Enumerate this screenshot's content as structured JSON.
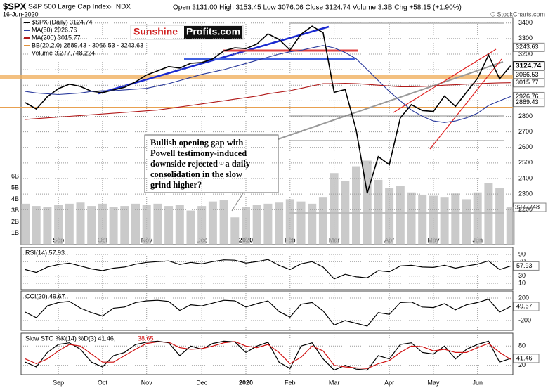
{
  "header": {
    "symbol": "$SPX",
    "name": "S&P 500 Large Cap Index· INDX",
    "date": "16-Jun-2020",
    "quote": "Open 3131.00 High 3153.45 Low 3076.06 Close 3124.74 Volume 3.3B Chg +58.15 (+1.90%)",
    "copyright": "© StockCharts.com"
  },
  "logo": {
    "left": "Sunshine",
    "right": "Profits.com"
  },
  "annotation": [
    "Bullish opening gap with",
    "Powell testimony-induced",
    "downside rejected - a daily",
    "consolidation in the slow",
    "grind higher?"
  ],
  "chart_data": [
    {
      "type": "line",
      "categories": [
        null,
        null,
        null,
        "Sep",
        null,
        null,
        null,
        "Oct",
        null,
        null,
        null,
        "Nov",
        null,
        null,
        null,
        null,
        "Dec",
        null,
        null,
        null,
        "2020",
        null,
        null,
        null,
        "Feb",
        null,
        null,
        null,
        "Mar",
        null,
        null,
        null,
        null,
        "Apr",
        null,
        null,
        null,
        "May",
        null,
        null,
        null,
        "Jun",
        null,
        null,
        null
      ],
      "series": [
        {
          "name": "$SPX (Daily) 3124.74",
          "color": "#000000",
          "values": [
            2888,
            2847,
            2926,
            2978,
            3007,
            2992,
            2961,
            2952,
            2970,
            2986,
            3022,
            3066,
            3093,
            3120,
            3110,
            3141,
            3146,
            3169,
            3221,
            3240,
            3235,
            3265,
            3330,
            3295,
            3226,
            3328,
            3380,
            3338,
            2954,
            2972,
            2711,
            2305,
            2541,
            2489,
            2790,
            2875,
            2837,
            2831,
            2930,
            2864,
            2955,
            3044,
            3194,
            3041,
            3124.74
          ]
        },
        {
          "name": "MA(50) 2926.76",
          "color": "#2a3a9c",
          "values": [
            2960,
            2950,
            2945,
            2940,
            2945,
            2950,
            2960,
            2965,
            2965,
            2970,
            2975,
            2980,
            2995,
            3010,
            3030,
            3050,
            3070,
            3085,
            3100,
            3120,
            3140,
            3160,
            3180,
            3200,
            3215,
            3225,
            3240,
            3255,
            3240,
            3210,
            3170,
            3100,
            3030,
            2960,
            2900,
            2840,
            2800,
            2770,
            2760,
            2770,
            2790,
            2820,
            2870,
            2900,
            2926.76
          ]
        },
        {
          "name": "MA(200) 3015.77",
          "color": "#b01818",
          "values": [
            2780,
            2785,
            2790,
            2795,
            2800,
            2805,
            2810,
            2815,
            2820,
            2825,
            2830,
            2835,
            2840,
            2850,
            2860,
            2870,
            2880,
            2890,
            2900,
            2910,
            2920,
            2930,
            2945,
            2955,
            2965,
            2980,
            2995,
            3010,
            3010,
            3012,
            3010,
            3005,
            3000,
            2995,
            2990,
            2990,
            2992,
            2995,
            3000,
            3003,
            3007,
            3010,
            3013,
            3015,
            3015.77
          ]
        }
      ],
      "legend_extra": [
        "BB(20,2.0) 2889.43 - 3066.53 - 3243.63"
      ],
      "ylim": [
        1975,
        3435
      ],
      "yticks": [
        2200,
        2300,
        2400,
        2500,
        2600,
        2700,
        2800,
        2900,
        3000,
        3100,
        3200,
        3300,
        3400
      ],
      "price_markers": [
        3243.63,
        3124.74,
        3066.53,
        3015.77,
        2926.76,
        2889.43
      ]
    },
    {
      "type": "bar",
      "name": "Volume 3,277,748,224",
      "color": "#b8b8b8",
      "values": [
        3.6,
        3.4,
        3.3,
        3.5,
        3.6,
        3.7,
        3.4,
        3.6,
        3.3,
        3.4,
        3.6,
        3.5,
        3.6,
        3.4,
        3.5,
        3.0,
        3.4,
        3.8,
        3.9,
        2.4,
        3.3,
        3.5,
        3.6,
        3.7,
        4.0,
        3.8,
        3.6,
        4.2,
        6.3,
        5.6,
        6.9,
        7.4,
        5.7,
        5.0,
        5.2,
        4.6,
        4.4,
        4.3,
        4.2,
        4.5,
        4.0,
        4.6,
        5.4,
        5.0,
        3.28
      ],
      "ylim": [
        0,
        20
      ],
      "yticks": [
        {
          "value": 1,
          "label": "1B"
        },
        {
          "value": 2,
          "label": "2B"
        },
        {
          "value": 3,
          "label": "3B"
        },
        {
          "value": 4,
          "label": "4B"
        },
        {
          "value": 5,
          "label": "5B"
        },
        {
          "value": 6,
          "label": "6B"
        }
      ],
      "marker_label": "3277748"
    },
    {
      "type": "line",
      "title": "RSI(14) 57.93",
      "series": [
        {
          "color": "#000000",
          "values": [
            48,
            40,
            55,
            62,
            66,
            58,
            50,
            45,
            52,
            55,
            63,
            68,
            70,
            72,
            62,
            68,
            64,
            70,
            75,
            74,
            66,
            70,
            76,
            60,
            48,
            64,
            70,
            55,
            22,
            35,
            28,
            25,
            45,
            42,
            58,
            60,
            55,
            54,
            60,
            52,
            58,
            63,
            72,
            48,
            57.93
          ]
        }
      ],
      "ylim": [
        -7.6,
        109.5
      ],
      "yticks": [
        10,
        30,
        70,
        90
      ],
      "markers": [
        57.93
      ]
    },
    {
      "type": "line",
      "title": "CCI(20) 49.67",
      "series": [
        {
          "color": "#000000",
          "values": [
            -50,
            -150,
            60,
            120,
            140,
            20,
            -60,
            -120,
            20,
            40,
            120,
            150,
            160,
            140,
            -20,
            80,
            60,
            110,
            160,
            150,
            40,
            100,
            150,
            -40,
            -140,
            90,
            120,
            -30,
            -280,
            -200,
            -250,
            -300,
            -60,
            -90,
            120,
            130,
            40,
            30,
            100,
            -10,
            80,
            120,
            180,
            -50,
            49.67
          ]
        }
      ],
      "ylim": [
        -375,
        325
      ],
      "yticks": [
        -200,
        200
      ],
      "markers": [
        49.67
      ]
    },
    {
      "type": "line",
      "title": "Slow STO %K(14) %D(3) 41.46,",
      "title_d": "38.65",
      "series": [
        {
          "color": "#000000",
          "values": [
            30,
            15,
            60,
            85,
            90,
            70,
            30,
            15,
            50,
            60,
            85,
            92,
            95,
            90,
            50,
            80,
            70,
            88,
            95,
            93,
            60,
            80,
            92,
            30,
            10,
            80,
            90,
            40,
            5,
            20,
            8,
            5,
            50,
            40,
            85,
            90,
            60,
            55,
            80,
            40,
            70,
            85,
            95,
            30,
            41.46
          ]
        },
        {
          "color": "#d01010",
          "values": [
            40,
            25,
            40,
            65,
            85,
            80,
            55,
            30,
            30,
            50,
            70,
            88,
            93,
            92,
            75,
            70,
            72,
            80,
            90,
            94,
            80,
            75,
            85,
            60,
            25,
            45,
            80,
            65,
            20,
            15,
            12,
            10,
            25,
            35,
            60,
            80,
            78,
            65,
            70,
            60,
            60,
            75,
            88,
            60,
            38.65
          ]
        }
      ],
      "ylim": [
        -9,
        120
      ],
      "yticks": [
        20,
        80
      ],
      "markers": [
        41.46
      ]
    }
  ]
}
